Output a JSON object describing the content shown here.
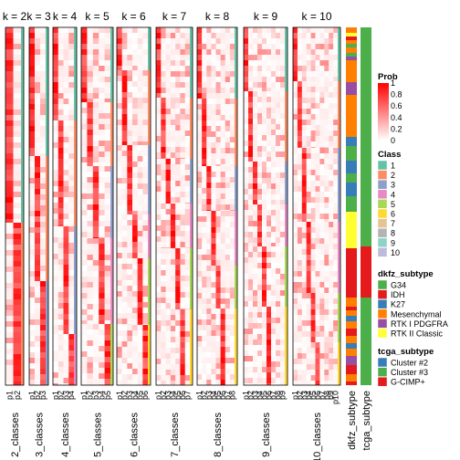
{
  "chart_data": {
    "type": "heatmap",
    "panel_titles": [
      "k = 2",
      "k = 3",
      "k = 4",
      "k = 5",
      "k = 6",
      "k = 7",
      "k = 8",
      "k = 9",
      "k = 10"
    ],
    "column_groups": [
      {
        "k": 2,
        "columns": [
          "p1",
          "p2"
        ],
        "group_label": "2_classes"
      },
      {
        "k": 3,
        "columns": [
          "p1",
          "p2",
          "p3"
        ],
        "group_label": "3_classes"
      },
      {
        "k": 4,
        "columns": [
          "p1",
          "p2",
          "p3",
          "p4"
        ],
        "group_label": "4_classes"
      },
      {
        "k": 5,
        "columns": [
          "p1",
          "p2",
          "p3",
          "p4",
          "p5"
        ],
        "group_label": "5_classes"
      },
      {
        "k": 6,
        "columns": [
          "p1",
          "p2",
          "p3",
          "p4",
          "p5",
          "p6"
        ],
        "group_label": "6_classes"
      },
      {
        "k": 7,
        "columns": [
          "p1",
          "p2",
          "p3",
          "p4",
          "p5",
          "p6",
          "p7"
        ],
        "group_label": "7_classes"
      },
      {
        "k": 8,
        "columns": [
          "p1",
          "p2",
          "p3",
          "p4",
          "p5",
          "p6",
          "p7",
          "p8"
        ],
        "group_label": "8_classes"
      },
      {
        "k": 9,
        "columns": [
          "p1",
          "p2",
          "p3",
          "p4",
          "p5",
          "p6",
          "p7",
          "p8",
          "p9"
        ],
        "group_label": "9_classes"
      },
      {
        "k": 10,
        "columns": [
          "p1",
          "p2",
          "p3",
          "p4",
          "p5",
          "p6",
          "p7",
          "p8",
          "p9",
          "p10"
        ],
        "group_label": "10_classes"
      }
    ],
    "annotation_tracks": [
      "dkfz_subtype",
      "tcga_subtype"
    ],
    "prob_legend": {
      "title": "Prob",
      "ticks": [
        "1",
        "0.8",
        "0.6",
        "0.4",
        "0.2",
        "0"
      ],
      "colors": [
        "#ff0000",
        "#ffffff"
      ]
    },
    "class_legend": {
      "title": "Class",
      "items": [
        {
          "label": "1",
          "color": "#66c2a5"
        },
        {
          "label": "2",
          "color": "#fc8d62"
        },
        {
          "label": "3",
          "color": "#8da0cb"
        },
        {
          "label": "4",
          "color": "#e78ac3"
        },
        {
          "label": "5",
          "color": "#a6d854"
        },
        {
          "label": "6",
          "color": "#ffd92f"
        },
        {
          "label": "7",
          "color": "#e5c494"
        },
        {
          "label": "8",
          "color": "#b3b3b3"
        },
        {
          "label": "9",
          "color": "#8dd3c7"
        },
        {
          "label": "10",
          "color": "#bebada"
        }
      ]
    },
    "dkfz_legend": {
      "title": "dkfz_subtype",
      "items": [
        {
          "label": "G34",
          "color": "#4daf4a"
        },
        {
          "label": "IDH",
          "color": "#e41a1c"
        },
        {
          "label": "K27",
          "color": "#377eb8"
        },
        {
          "label": "Mesenchymal",
          "color": "#ff7f00"
        },
        {
          "label": "RTK I PDGFRA",
          "color": "#984ea3"
        },
        {
          "label": "RTK II Classic",
          "color": "#ffff33"
        }
      ]
    },
    "tcga_legend": {
      "title": "tcga_subtype",
      "items": [
        {
          "label": "Cluster #2",
          "color": "#377eb8"
        },
        {
          "label": "Cluster #3",
          "color": "#4daf4a"
        },
        {
          "label": "G-CIMP+",
          "color": "#e41a1c"
        }
      ]
    }
  }
}
